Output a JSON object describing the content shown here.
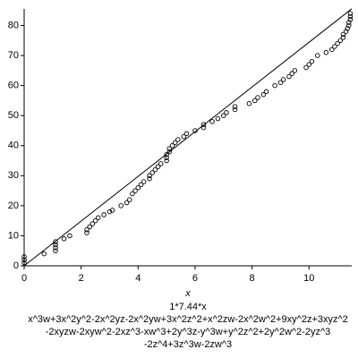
{
  "chart_data": {
    "type": "scatter",
    "x_label": "x",
    "caption": [
      "1*7.44*x",
      "x^3w+3x^2y^2-2x^2yz-2x^2yw+3x^2z^2+x^2zw-2x^2w^2+9xy^2z+3xyz^2",
      "-2xyzw-2xyw^2-2xz^3-xw^3+2y^3z-y^3w+y^2z^2+2y^2w^2-2yz^3",
      "-2z^4+3z^3w-2zw^3"
    ],
    "xlim": [
      0,
      11.5
    ],
    "ylim": [
      0,
      85.5
    ],
    "xticks": [
      0,
      2,
      4,
      6,
      8,
      10
    ],
    "yticks": [
      0,
      10,
      20,
      30,
      40,
      50,
      60,
      70,
      80
    ],
    "series": [
      {
        "type": "scatter",
        "color": "#000000",
        "x": [
          0,
          0,
          0,
          0.7,
          1.1,
          1.1,
          1.1,
          1.1,
          1.4,
          1.6,
          2.2,
          2.2,
          2.3,
          2.4,
          2.5,
          2.6,
          2.8,
          3.0,
          3.1,
          3.4,
          3.6,
          3.7,
          3.8,
          3.9,
          4.0,
          4.1,
          4.2,
          4.4,
          4.4,
          4.5,
          4.6,
          4.7,
          4.8,
          5.0,
          5.0,
          5.0,
          5.1,
          5.1,
          5.2,
          5.3,
          5.4,
          5.6,
          5.7,
          6.0,
          6.3,
          6.3,
          6.6,
          6.8,
          7.0,
          7.1,
          7.4,
          7.4,
          7.9,
          8.1,
          8.2,
          8.4,
          8.5,
          8.8,
          9.0,
          9.1,
          9.3,
          9.4,
          9.5,
          9.9,
          10.0,
          10.1,
          10.3,
          10.6,
          10.8,
          10.9,
          11.0,
          11.1,
          11.2,
          11.2,
          11.3,
          11.35,
          11.4,
          11.4,
          11.45,
          11.45,
          11.45
        ],
        "values": [
          1,
          2,
          3,
          4,
          5,
          6,
          7,
          8,
          9,
          10,
          11,
          12,
          13,
          14,
          15,
          16,
          17,
          18,
          18.5,
          20,
          21,
          22,
          24,
          25,
          26,
          27,
          28,
          29,
          30,
          31,
          32,
          33,
          34,
          35,
          36,
          37,
          38,
          39,
          40,
          41,
          42,
          43,
          44,
          45,
          46,
          47,
          48,
          49,
          50,
          51,
          52,
          53,
          54,
          55,
          56,
          57,
          58,
          60,
          61,
          62,
          63,
          64,
          65,
          66,
          67,
          68,
          70,
          71,
          72,
          73,
          74,
          75,
          76,
          77,
          78,
          79,
          80,
          81,
          82,
          83,
          84
        ]
      },
      {
        "type": "line",
        "color": "#000000",
        "x": [
          0,
          11.5
        ],
        "values": [
          0,
          85.56
        ]
      }
    ]
  }
}
